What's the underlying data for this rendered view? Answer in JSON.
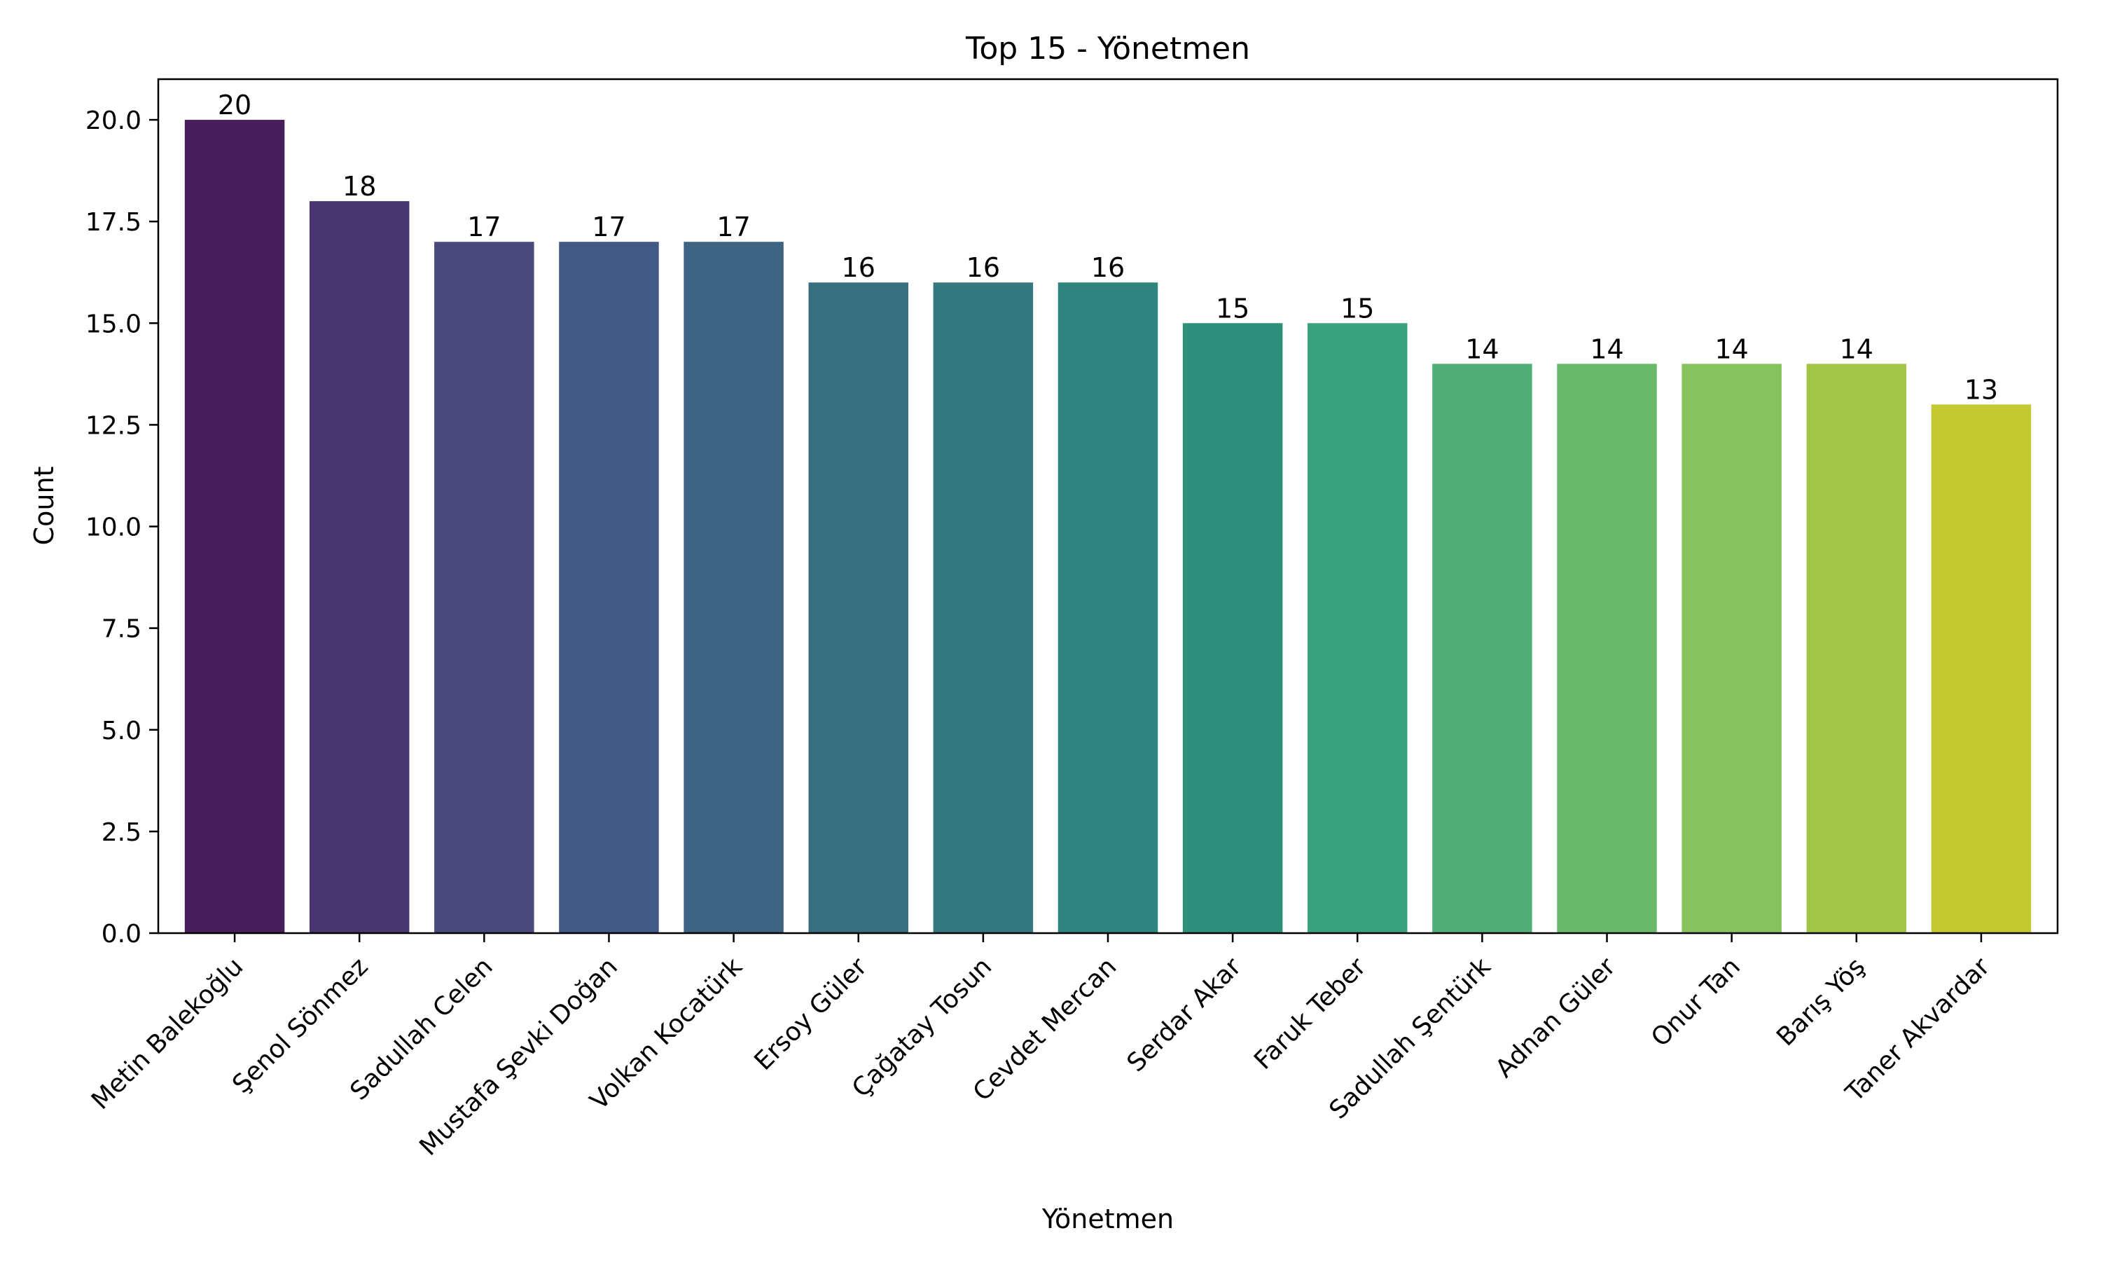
{
  "chart_data": {
    "type": "bar",
    "title": "Top 15 - Yönetmen",
    "xlabel": "Yönetmen",
    "ylabel": "Count",
    "ylim": [
      0,
      21
    ],
    "yticks": [
      "0.0",
      "2.5",
      "5.0",
      "7.5",
      "10.0",
      "12.5",
      "15.0",
      "17.5",
      "20.0"
    ],
    "grid": false,
    "legend": "none",
    "categories": [
      "Metin Balekoğlu",
      "Şenol Sönmez",
      "Sadullah Celen",
      "Mustafa Şevki Doğan",
      "Volkan Kocatürk",
      "Ersoy Güler",
      "Çağatay Tosun",
      "Cevdet Mercan",
      "Serdar Akar",
      "Faruk Teber",
      "Sadullah Şentürk",
      "Adnan Güler",
      "Onur Tan",
      "Barış Yöş",
      "Taner Akvardar"
    ],
    "values": [
      20,
      18,
      17,
      17,
      17,
      16,
      16,
      16,
      15,
      15,
      14,
      14,
      14,
      14,
      13
    ],
    "colors": [
      "#481f5b",
      "#48366f",
      "#4a4a7c",
      "#435985",
      "#3e6383",
      "#386f7f",
      "#33787f",
      "#2f857e",
      "#2e8f7c",
      "#3aa27e",
      "#51ae76",
      "#6bba6c",
      "#86c35e",
      "#a3c649",
      "#c2c931"
    ]
  }
}
